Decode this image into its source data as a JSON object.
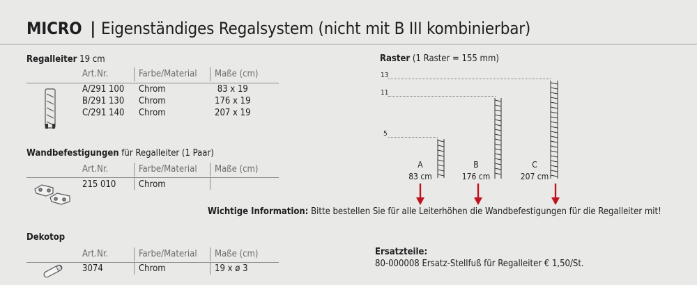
{
  "title": {
    "brand": "MICRO",
    "separator": "|",
    "subtitle": "Eigenständiges Regalsystem (nicht mit B III kombinierbar)"
  },
  "regalleiter": {
    "heading_bold": "Regalleiter",
    "heading_rest": " 19 cm",
    "columns": [
      "Art.Nr.",
      "Farbe/Material",
      "Maße (cm)"
    ],
    "rows": [
      {
        "art": "A/291 100",
        "material": "Chrom",
        "mass": " 83 x 19"
      },
      {
        "art": "B/291 130",
        "material": "Chrom",
        "mass": "176 x 19"
      },
      {
        "art": "C/291 140",
        "material": "Chrom",
        "mass": "207 x 19"
      }
    ]
  },
  "wandbefestigungen": {
    "heading_bold": "Wandbefestigungen",
    "heading_rest": " für Regalleiter (1 Paar)",
    "columns": [
      "Art.Nr.",
      "Farbe/Material",
      "Maße (cm)"
    ],
    "rows": [
      {
        "art": "215 010",
        "material": "Chrom",
        "mass": ""
      }
    ]
  },
  "dekotop": {
    "heading_bold": "Dekotop",
    "columns": [
      "Art.Nr.",
      "Farbe/Material",
      "Maße (cm)"
    ],
    "rows": [
      {
        "art": "3074",
        "material": "Chrom",
        "mass": "19 x ø 3"
      }
    ]
  },
  "raster": {
    "heading_bold": "Raster",
    "heading_rest": " (1 Raster = 155 mm)",
    "levels": [
      "13",
      "11",
      "5"
    ],
    "ladders": [
      {
        "letter": "A",
        "height": "83 cm"
      },
      {
        "letter": "B",
        "height": "176 cm"
      },
      {
        "letter": "C",
        "height": "207 cm"
      }
    ],
    "arrow_color": "#c0121f"
  },
  "info": {
    "label": "Wichtige Information:",
    "text": " Bitte bestellen Sie für alle Leiterhöhen die Wandbefestigungen für die Regalleiter mit!"
  },
  "ersatzteile": {
    "heading": "Ersatzteile:",
    "line": "80-000008 Ersatz-Stellfuß für Regalleiter € 1,50/St."
  }
}
